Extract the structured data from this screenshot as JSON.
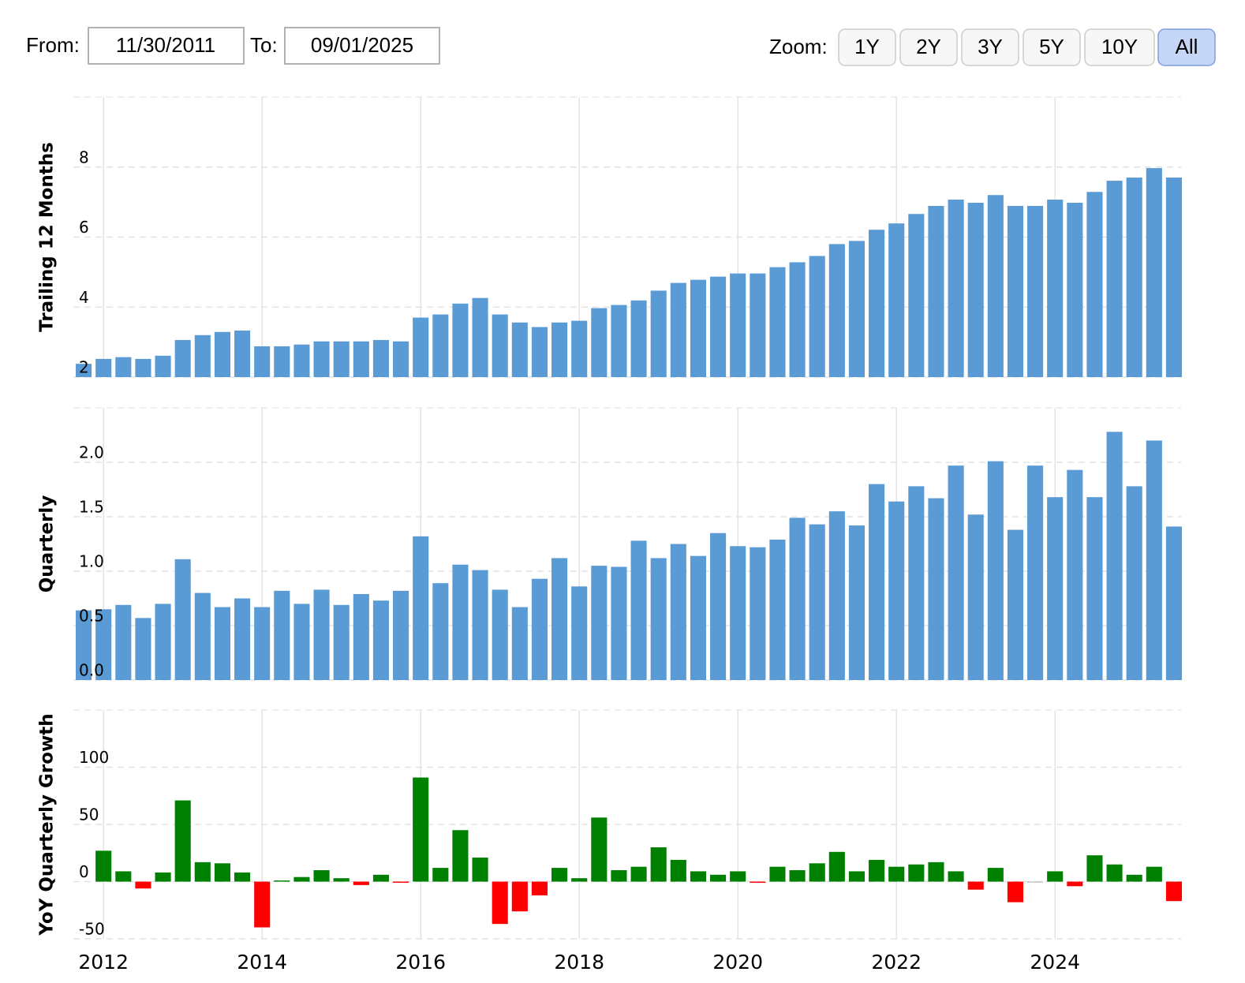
{
  "controls": {
    "from_label": "From:",
    "from_value": "11/30/2011",
    "to_label": "To:",
    "to_value": "09/01/2025",
    "zoom_label": "Zoom:",
    "zoom_options": [
      "1Y",
      "2Y",
      "3Y",
      "5Y",
      "10Y",
      "All"
    ],
    "zoom_selected": "All"
  },
  "chart_data": [
    {
      "type": "bar",
      "y_label": "Trailing 12 Months",
      "color": "#5b9bd5",
      "x": [
        2011.75,
        2012,
        2012.25,
        2012.5,
        2012.75,
        2013,
        2013.25,
        2013.5,
        2013.75,
        2014,
        2014.25,
        2014.5,
        2014.75,
        2015,
        2015.25,
        2015.5,
        2015.75,
        2016,
        2016.25,
        2016.5,
        2016.75,
        2017,
        2017.25,
        2017.5,
        2017.75,
        2018,
        2018.25,
        2018.5,
        2018.75,
        2019,
        2019.25,
        2019.5,
        2019.75,
        2020,
        2020.25,
        2020.5,
        2020.75,
        2021,
        2021.25,
        2021.5,
        2021.75,
        2022,
        2022.25,
        2022.5,
        2022.75,
        2023,
        2023.25,
        2023.5,
        2023.75,
        2024,
        2024.25,
        2024.5,
        2024.75,
        2025,
        2025.25,
        2025.5
      ],
      "values": [
        2.38,
        2.52,
        2.57,
        2.52,
        2.61,
        3.06,
        3.2,
        3.29,
        3.33,
        2.88,
        2.88,
        2.93,
        3.02,
        3.02,
        3.02,
        3.06,
        3.02,
        3.7,
        3.79,
        4.1,
        4.26,
        3.79,
        3.56,
        3.43,
        3.56,
        3.61,
        3.97,
        4.06,
        4.19,
        4.47,
        4.69,
        4.78,
        4.87,
        4.96,
        4.96,
        5.14,
        5.28,
        5.46,
        5.8,
        5.89,
        6.21,
        6.39,
        6.66,
        6.89,
        7.07,
        6.98,
        7.2,
        6.89,
        6.89,
        7.07,
        6.98,
        7.29,
        7.61,
        7.7,
        7.97,
        7.7
      ],
      "xlim": [
        2011.62,
        2025.59
      ],
      "ylim": [
        2,
        10
      ],
      "yticks": [
        2,
        4,
        6,
        8
      ],
      "grid": true
    },
    {
      "type": "bar",
      "y_label": "Quarterly",
      "color": "#5b9bd5",
      "x": [
        2011.75,
        2012,
        2012.25,
        2012.5,
        2012.75,
        2013,
        2013.25,
        2013.5,
        2013.75,
        2014,
        2014.25,
        2014.5,
        2014.75,
        2015,
        2015.25,
        2015.5,
        2015.75,
        2016,
        2016.25,
        2016.5,
        2016.75,
        2017,
        2017.25,
        2017.5,
        2017.75,
        2018,
        2018.25,
        2018.5,
        2018.75,
        2019,
        2019.25,
        2019.5,
        2019.75,
        2020,
        2020.25,
        2020.5,
        2020.75,
        2021,
        2021.25,
        2021.5,
        2021.75,
        2022,
        2022.25,
        2022.5,
        2022.75,
        2023,
        2023.25,
        2023.5,
        2023.75,
        2024,
        2024.25,
        2024.5,
        2024.75,
        2025,
        2025.25,
        2025.5
      ],
      "values": [
        0.64,
        0.65,
        0.69,
        0.57,
        0.7,
        1.11,
        0.8,
        0.67,
        0.75,
        0.67,
        0.82,
        0.7,
        0.83,
        0.69,
        0.79,
        0.73,
        0.82,
        1.32,
        0.89,
        1.06,
        1.01,
        0.83,
        0.67,
        0.93,
        1.12,
        0.86,
        1.05,
        1.04,
        1.28,
        1.12,
        1.25,
        1.14,
        1.35,
        1.23,
        1.22,
        1.29,
        1.49,
        1.43,
        1.55,
        1.42,
        1.8,
        1.64,
        1.78,
        1.67,
        1.97,
        1.52,
        2.01,
        1.38,
        1.97,
        1.68,
        1.93,
        1.68,
        2.28,
        1.78,
        2.2,
        1.41
      ],
      "xlim": [
        2011.62,
        2025.59
      ],
      "ylim": [
        0,
        2.5
      ],
      "yticks": [
        {
          "value": 0,
          "label": "0.0"
        },
        0.5,
        {
          "value": 1,
          "label": "1.0"
        },
        1.5,
        {
          "value": 2,
          "label": "2.0"
        }
      ],
      "grid": true
    },
    {
      "type": "bar",
      "y_label": "YoY Quarterly Growth",
      "color": "#008000",
      "negative_color": "#ff0000",
      "x": [
        2011.75,
        2012,
        2012.25,
        2012.5,
        2012.75,
        2013,
        2013.25,
        2013.5,
        2013.75,
        2014,
        2014.25,
        2014.5,
        2014.75,
        2015,
        2015.25,
        2015.5,
        2015.75,
        2016,
        2016.25,
        2016.5,
        2016.75,
        2017,
        2017.25,
        2017.5,
        2017.75,
        2018,
        2018.25,
        2018.5,
        2018.75,
        2019,
        2019.25,
        2019.5,
        2019.75,
        2020,
        2020.25,
        2020.5,
        2020.75,
        2021,
        2021.25,
        2021.5,
        2021.75,
        2022,
        2022.25,
        2022.5,
        2022.75,
        2023,
        2023.25,
        2023.5,
        2023.75,
        2024,
        2024.25,
        2024.5,
        2024.75,
        2025,
        2025.25,
        2025.5
      ],
      "values": [
        null,
        27,
        9,
        -6,
        8,
        71,
        17,
        16,
        8,
        -40,
        1,
        4,
        10,
        3,
        -3,
        6,
        -1,
        91,
        12,
        45,
        21,
        -37,
        -26,
        -12,
        12,
        3,
        56,
        10,
        13,
        30,
        19,
        9,
        6,
        9,
        -1,
        13,
        10,
        16,
        26,
        9,
        19,
        13,
        15,
        17,
        9,
        -7,
        12,
        -18,
        0,
        9,
        -4,
        23,
        15,
        6,
        13,
        -17
      ],
      "xlim": [
        2011.62,
        2025.59
      ],
      "ylim": [
        -50,
        150
      ],
      "yticks": [
        -50,
        0,
        50,
        100
      ],
      "xticks": [
        2012,
        2014,
        2016,
        2018,
        2020,
        2022,
        2024
      ],
      "grid": true
    }
  ]
}
